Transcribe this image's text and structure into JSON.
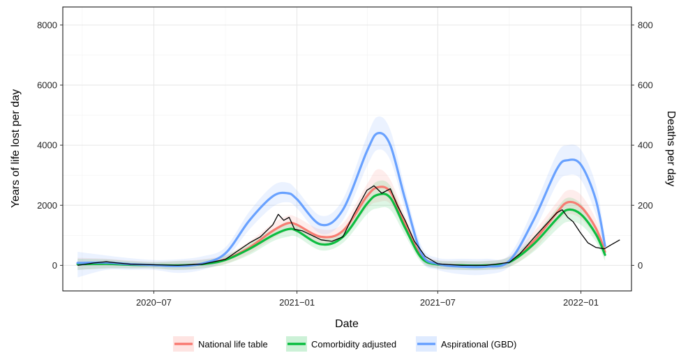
{
  "chart_data": {
    "type": "line",
    "xlabel": "Date",
    "ylabel": "Years of life lost per day",
    "y2label": "Deaths per day",
    "xlim": [
      "2020-03-06",
      "2022-03-07"
    ],
    "ylim": [
      -850,
      8600
    ],
    "y2lim": [
      -85,
      860
    ],
    "x_ticks": [
      "2020-07-01",
      "2021-01-01",
      "2021-07-01",
      "2022-01-01"
    ],
    "x_tick_labels": [
      "2020−07",
      "2021−01",
      "2021−07",
      "2022−01"
    ],
    "y_ticks": [
      0,
      2000,
      4000,
      6000,
      8000
    ],
    "y2_ticks": [
      0,
      200,
      400,
      600,
      800
    ],
    "grid": true,
    "legend_position": "bottom",
    "series": [
      {
        "name": "National life table",
        "color": "#F8766D",
        "axis": "left",
        "x": [
          "2020-03-25",
          "2020-05-01",
          "2020-06-01",
          "2020-07-01",
          "2020-08-01",
          "2020-09-01",
          "2020-10-01",
          "2020-11-01",
          "2020-12-01",
          "2020-12-20",
          "2021-01-01",
          "2021-02-01",
          "2021-03-01",
          "2021-04-01",
          "2021-04-15",
          "2021-05-01",
          "2021-05-20",
          "2021-06-10",
          "2021-07-01",
          "2021-08-01",
          "2021-09-01",
          "2021-10-01",
          "2021-11-01",
          "2021-12-01",
          "2021-12-15",
          "2022-01-01",
          "2022-01-20",
          "2022-02-01"
        ],
        "y": [
          50,
          60,
          30,
          10,
          0,
          50,
          200,
          600,
          1150,
          1400,
          1350,
          950,
          1150,
          2300,
          2600,
          2450,
          1400,
          300,
          40,
          0,
          0,
          120,
          800,
          1750,
          2100,
          1950,
          1250,
          450
        ]
      },
      {
        "name": "Comorbidity adjusted",
        "color": "#00BA38",
        "axis": "left",
        "x": [
          "2020-03-25",
          "2020-05-01",
          "2020-06-01",
          "2020-07-01",
          "2020-08-01",
          "2020-09-01",
          "2020-10-01",
          "2020-11-01",
          "2020-12-01",
          "2020-12-20",
          "2021-01-01",
          "2021-02-01",
          "2021-03-01",
          "2021-04-01",
          "2021-04-15",
          "2021-05-01",
          "2021-05-20",
          "2021-06-10",
          "2021-07-01",
          "2021-08-01",
          "2021-09-01",
          "2021-10-01",
          "2021-11-01",
          "2021-12-01",
          "2021-12-15",
          "2022-01-01",
          "2022-01-20",
          "2022-02-01"
        ],
        "y": [
          40,
          50,
          20,
          10,
          0,
          40,
          180,
          550,
          1000,
          1200,
          1150,
          700,
          950,
          2050,
          2350,
          2250,
          1250,
          250,
          30,
          0,
          0,
          110,
          700,
          1550,
          1850,
          1700,
          1050,
          350
        ]
      },
      {
        "name": "Aspirational (GBD)",
        "color": "#619CFF",
        "axis": "left",
        "x": [
          "2020-03-25",
          "2020-05-01",
          "2020-06-01",
          "2020-07-01",
          "2020-08-01",
          "2020-09-01",
          "2020-10-01",
          "2020-11-01",
          "2020-12-01",
          "2020-12-20",
          "2021-01-01",
          "2021-02-01",
          "2021-03-01",
          "2021-04-01",
          "2021-04-15",
          "2021-05-01",
          "2021-05-20",
          "2021-06-10",
          "2021-07-01",
          "2021-08-01",
          "2021-09-01",
          "2021-10-01",
          "2021-11-01",
          "2021-12-01",
          "2021-12-15",
          "2022-01-01",
          "2022-01-20",
          "2022-02-01"
        ],
        "y": [
          80,
          90,
          40,
          10,
          -20,
          60,
          400,
          1500,
          2300,
          2400,
          2200,
          1350,
          1850,
          3800,
          4400,
          4000,
          2200,
          400,
          50,
          -40,
          -40,
          150,
          1500,
          3200,
          3500,
          3350,
          2200,
          650
        ]
      },
      {
        "name": "",
        "color": "#000000",
        "axis": "right",
        "x": [
          "2020-03-25",
          "2020-04-15",
          "2020-05-01",
          "2020-05-15",
          "2020-06-01",
          "2020-07-01",
          "2020-08-01",
          "2020-09-01",
          "2020-10-01",
          "2020-11-01",
          "2020-11-15",
          "2020-12-01",
          "2020-12-08",
          "2020-12-15",
          "2020-12-22",
          "2020-12-29",
          "2021-01-08",
          "2021-01-20",
          "2021-02-01",
          "2021-02-15",
          "2021-03-01",
          "2021-03-15",
          "2021-04-01",
          "2021-04-10",
          "2021-04-20",
          "2021-05-01",
          "2021-05-10",
          "2021-05-20",
          "2021-06-01",
          "2021-06-15",
          "2021-07-01",
          "2021-08-01",
          "2021-09-01",
          "2021-10-01",
          "2021-10-15",
          "2021-11-01",
          "2021-11-15",
          "2021-12-01",
          "2021-12-08",
          "2021-12-15",
          "2021-12-22",
          "2021-12-31",
          "2022-01-10",
          "2022-01-20",
          "2022-01-31",
          "2022-02-10",
          "2022-02-20"
        ],
        "y": [
          0,
          8,
          12,
          8,
          4,
          2,
          0,
          4,
          20,
          75,
          95,
          135,
          170,
          150,
          160,
          120,
          115,
          100,
          85,
          80,
          95,
          170,
          250,
          265,
          240,
          255,
          200,
          150,
          80,
          30,
          5,
          0,
          0,
          10,
          40,
          90,
          130,
          175,
          185,
          160,
          145,
          110,
          75,
          60,
          55,
          70,
          85
        ]
      }
    ],
    "bands": [
      {
        "series": "National life table",
        "lower": [
          -150,
          -100,
          -100,
          -100,
          -150,
          -100,
          50,
          400,
          900,
          1150,
          1100,
          700,
          900,
          1900,
          2100,
          2050,
          1150,
          150,
          -100,
          -150,
          -150,
          -50,
          500,
          1400,
          1700,
          1550,
          950,
          250
        ],
        "upper": [
          250,
          220,
          160,
          120,
          150,
          200,
          350,
          800,
          1400,
          1650,
          1600,
          1200,
          1400,
          2700,
          3200,
          2850,
          1650,
          450,
          180,
          150,
          150,
          300,
          1100,
          2100,
          2500,
          2350,
          1550,
          650
        ]
      },
      {
        "series": "Comorbidity adjusted",
        "lower": [
          -150,
          -100,
          -100,
          -100,
          -150,
          -100,
          40,
          350,
          800,
          950,
          950,
          500,
          750,
          1700,
          1900,
          1850,
          1000,
          100,
          -100,
          -150,
          -150,
          -50,
          450,
          1200,
          1450,
          1350,
          800,
          150
        ],
        "upper": [
          220,
          200,
          140,
          110,
          140,
          180,
          320,
          750,
          1200,
          1450,
          1350,
          900,
          1150,
          2400,
          2800,
          2650,
          1500,
          400,
          160,
          140,
          140,
          280,
          950,
          1900,
          2250,
          2050,
          1300,
          550
        ]
      },
      {
        "series": "Aspirational (GBD)",
        "lower": [
          -400,
          -150,
          -150,
          -150,
          -250,
          -150,
          200,
          1200,
          1950,
          2100,
          1900,
          1050,
          1500,
          3300,
          3850,
          3500,
          1850,
          150,
          -150,
          -300,
          -300,
          -50,
          1100,
          2700,
          3000,
          2850,
          1700,
          350
        ],
        "upper": [
          450,
          330,
          240,
          180,
          200,
          300,
          600,
          1800,
          2650,
          2750,
          2500,
          1650,
          2200,
          4300,
          4950,
          4500,
          2550,
          650,
          250,
          220,
          220,
          350,
          1900,
          3700,
          4000,
          3850,
          2700,
          950
        ]
      }
    ]
  }
}
